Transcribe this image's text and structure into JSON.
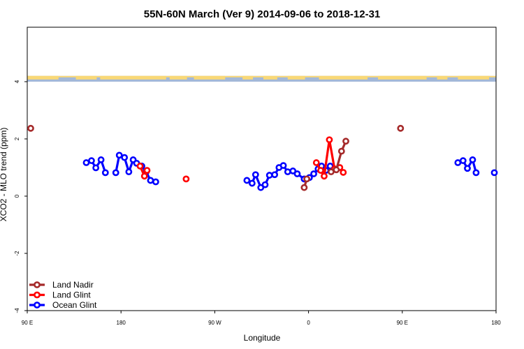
{
  "chart_data": {
    "type": "line",
    "title": "55N-60N March (Ver 9)   2014-09-06 to 2018-12-31",
    "xlabel": "Longitude",
    "ylabel": "XCO2 - MLO trend (ppm)",
    "xlim": [
      -90,
      180
    ],
    "ylim": [
      -4,
      6
    ],
    "x_ticks": [
      {
        "value": -90,
        "label": "90 E"
      },
      {
        "value": -36,
        "label": "180"
      },
      {
        "value": 18,
        "label": "90 W"
      },
      {
        "value": 72,
        "label": "0"
      },
      {
        "value": 126,
        "label": "90 E"
      },
      {
        "value": 180,
        "label": "180"
      }
    ],
    "y_ticks": [
      {
        "value": -4,
        "label": "-4"
      },
      {
        "value": -2,
        "label": "-2"
      },
      {
        "value": 0,
        "label": "0"
      },
      {
        "value": 2,
        "label": "2"
      },
      {
        "value": 4,
        "label": "4"
      }
    ],
    "map_strip": {
      "y_from": 4.0,
      "y_to": 4.2,
      "land_color": "#f9d877",
      "ocean_color": "#a3b8d8"
    },
    "legend": {
      "position": "bottom-left"
    },
    "series": [
      {
        "name": "Land Nadir",
        "color": "#a52a2a",
        "segments": [
          [
            [
              -88,
              2.37
            ]
          ],
          [
            [
              69.5,
              0.3
            ],
            [
              71,
              0.6
            ]
          ],
          [
            [
              85,
              0.85
            ],
            [
              88,
              0.92
            ],
            [
              91,
              1.57
            ],
            [
              93.5,
              1.92
            ]
          ],
          [
            [
              125,
              2.37
            ]
          ]
        ]
      },
      {
        "name": "Land Glint",
        "color": "#ff0000",
        "segments": [
          [
            [
              -25,
              1.05
            ],
            [
              -22.5,
              0.7
            ],
            [
              -21,
              0.9
            ]
          ],
          [
            [
              1.5,
              0.6
            ]
          ],
          [
            [
              76.5,
              1.17
            ],
            [
              79,
              0.9
            ],
            [
              81,
              0.7
            ],
            [
              84,
              1.97
            ],
            [
              87,
              0.95
            ],
            [
              90,
              1.0
            ],
            [
              92,
              0.83
            ]
          ]
        ]
      },
      {
        "name": "Ocean Glint",
        "color": "#0000ff",
        "segments": [
          [
            [
              -56,
              1.17
            ],
            [
              -53,
              1.24
            ],
            [
              -50.5,
              0.99
            ],
            [
              -47.5,
              1.27
            ],
            [
              -45,
              0.82
            ]
          ],
          [
            [
              -39,
              0.82
            ],
            [
              -37,
              1.43
            ],
            [
              -34,
              1.35
            ],
            [
              -31.5,
              0.85
            ],
            [
              -29,
              1.27
            ],
            [
              -27,
              1.15
            ],
            [
              -24,
              1.05
            ],
            [
              -21.5,
              0.85
            ],
            [
              -19,
              0.55
            ],
            [
              -16,
              0.5
            ]
          ],
          [
            [
              36.5,
              0.55
            ],
            [
              39.5,
              0.45
            ],
            [
              41.5,
              0.75
            ],
            [
              44.5,
              0.3
            ],
            [
              47,
              0.4
            ],
            [
              49.5,
              0.73
            ],
            [
              52.5,
              0.75
            ],
            [
              55,
              1.0
            ],
            [
              57.5,
              1.07
            ],
            [
              60,
              0.85
            ],
            [
              63,
              0.88
            ],
            [
              65.5,
              0.78
            ],
            [
              69.5,
              0.6
            ],
            [
              72.5,
              0.65
            ],
            [
              75,
              0.78
            ],
            [
              77.5,
              0.95
            ],
            [
              79.5,
              1.05
            ],
            [
              82,
              0.9
            ],
            [
              84.5,
              1.05
            ]
          ],
          [
            [
              158,
              1.17
            ],
            [
              161,
              1.24
            ],
            [
              163.5,
              0.97
            ],
            [
              166.5,
              1.27
            ],
            [
              168.5,
              0.82
            ]
          ],
          [
            [
              179,
              0.82
            ]
          ]
        ]
      }
    ]
  }
}
